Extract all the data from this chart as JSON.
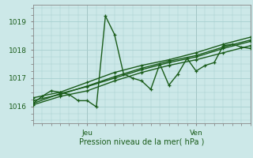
{
  "background_color": "#cce8e8",
  "grid_color": "#a8d0d0",
  "line_color": "#1a5c1a",
  "marker_color": "#1a5c1a",
  "ylabel_ticks": [
    1016,
    1017,
    1018,
    1019
  ],
  "xlim": [
    0,
    48
  ],
  "ylim": [
    1015.4,
    1019.6
  ],
  "xlabel": "Pression niveau de la mer( hPa )",
  "tick_labels_x": [
    [
      "Jeu",
      12
    ],
    [
      "Ven",
      36
    ]
  ],
  "vline_positions": [
    12,
    36
  ],
  "series": [
    [
      0,
      1016.1,
      2,
      1016.35,
      4,
      1016.55,
      6,
      1016.5,
      8,
      1016.42,
      10,
      1016.2,
      12,
      1016.2,
      14,
      1015.98,
      16,
      1019.2,
      18,
      1018.55,
      20,
      1017.15,
      22,
      1017.0,
      24,
      1016.9,
      26,
      1016.6,
      28,
      1017.5,
      30,
      1016.75,
      32,
      1017.15,
      34,
      1017.7,
      36,
      1017.25,
      38,
      1017.45,
      40,
      1017.55,
      42,
      1018.15,
      44,
      1018.2,
      46,
      1018.1,
      48,
      1018.05
    ],
    [
      0,
      1016.1,
      6,
      1016.45,
      12,
      1016.7,
      18,
      1017.0,
      24,
      1017.3,
      30,
      1017.55,
      36,
      1017.75,
      42,
      1018.05,
      48,
      1018.3
    ],
    [
      0,
      1016.3,
      6,
      1016.5,
      12,
      1016.85,
      18,
      1017.2,
      24,
      1017.45,
      30,
      1017.65,
      36,
      1017.9,
      42,
      1018.2,
      48,
      1018.45
    ],
    [
      0,
      1016.05,
      6,
      1016.35,
      12,
      1016.55,
      18,
      1016.9,
      24,
      1017.2,
      30,
      1017.45,
      36,
      1017.65,
      42,
      1017.9,
      48,
      1018.15
    ],
    [
      0,
      1016.2,
      6,
      1016.42,
      12,
      1016.72,
      18,
      1017.05,
      24,
      1017.35,
      30,
      1017.6,
      36,
      1017.8,
      42,
      1018.1,
      48,
      1018.35
    ]
  ]
}
